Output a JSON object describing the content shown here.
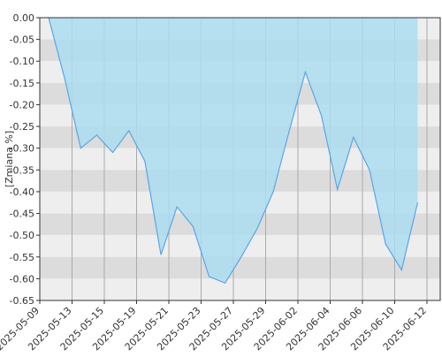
{
  "chart_data": {
    "type": "area",
    "y_label": "[Zmiana %]",
    "values": [
      0.0,
      -0.14,
      -0.3,
      -0.27,
      -0.31,
      -0.26,
      -0.33,
      -0.545,
      -0.435,
      -0.48,
      -0.595,
      -0.61,
      -0.55,
      -0.485,
      -0.4,
      -0.26,
      -0.125,
      -0.225,
      -0.395,
      -0.275,
      -0.35,
      -0.52,
      -0.58,
      -0.425
    ],
    "color": "#5aa6e6",
    "fill": "#acdcee",
    "ylim": [
      -0.65,
      0
    ],
    "yticks": [
      {
        "value": 0,
        "label": "0.00"
      },
      -0.05,
      {
        "value": -0.1,
        "label": "-0.10"
      },
      -0.15,
      {
        "value": -0.2,
        "label": "-0.20"
      },
      -0.25,
      {
        "value": -0.3,
        "label": "-0.30"
      },
      -0.35,
      {
        "value": -0.4,
        "label": "-0.40"
      },
      -0.45,
      {
        "value": -0.5,
        "label": "-0.50"
      },
      -0.55,
      {
        "value": -0.6,
        "label": "-0.60"
      },
      -0.65
    ],
    "xticks": [
      "2025-05-09",
      "2025-05-13",
      "2025-05-15",
      "2025-05-19",
      "2025-05-21",
      "2025-05-23",
      "2025-05-27",
      "2025-05-29",
      "2025-06-02",
      "2025-06-04",
      "2025-06-06",
      "2025-06-10",
      "2025-06-12"
    ],
    "grid": true
  }
}
